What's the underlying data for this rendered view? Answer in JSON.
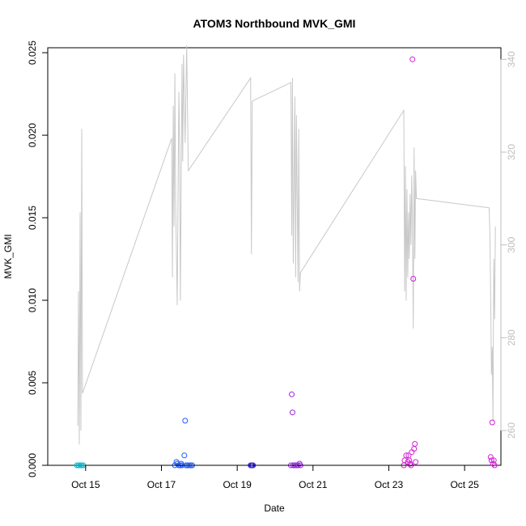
{
  "chart_data": {
    "type": "scatter",
    "title": "ATOM3 Northbound MVK_GMI",
    "xlabel": "Date",
    "ylabel": "MVK_GMI",
    "xlim": [
      "2016-10-14T00:00",
      "2016-10-25T23:00"
    ],
    "ylim": [
      0,
      0.0253
    ],
    "x_ticks": [
      {
        "date": "2016-10-15T00:00",
        "label": "Oct 15"
      },
      {
        "date": "2016-10-17T00:00",
        "label": "Oct 17"
      },
      {
        "date": "2016-10-19T00:00",
        "label": "Oct 19"
      },
      {
        "date": "2016-10-21T00:00",
        "label": "Oct 21"
      },
      {
        "date": "2016-10-23T00:00",
        "label": "Oct 23"
      },
      {
        "date": "2016-10-25T00:00",
        "label": "Oct 25"
      }
    ],
    "y_ticks": [
      0.0,
      0.005,
      0.01,
      0.015,
      0.02,
      0.025
    ],
    "y_tick_labels": [
      "0.000",
      "0.005",
      "0.010",
      "0.015",
      "0.020",
      "0.025"
    ],
    "y2lim": [
      252.5,
      342.5
    ],
    "y2_ticks": [
      260,
      280,
      300,
      320,
      340
    ],
    "y2_tick_labels": [
      "260",
      "280",
      "300",
      "320",
      "340"
    ],
    "series": [
      {
        "color": "#00bcd4",
        "marker": "circle-open",
        "points": [
          [
            "2016-10-14T18:30",
            0.0
          ],
          [
            "2016-10-14T19:30",
            0.0
          ],
          [
            "2016-10-14T20:30",
            0.0
          ],
          [
            "2016-10-14T21:30",
            0.0
          ],
          [
            "2016-10-14T22:30",
            0.0
          ]
        ]
      },
      {
        "color": "#1e5bff",
        "marker": "circle-open",
        "points": [
          [
            "2016-10-17T08:30",
            0.0
          ],
          [
            "2016-10-17T09:30",
            0.0002
          ],
          [
            "2016-10-17T10:00",
            0.0001
          ],
          [
            "2016-10-17T11:00",
            0.0
          ],
          [
            "2016-10-17T12:00",
            0.0
          ],
          [
            "2016-10-17T12:30",
            0.0001
          ],
          [
            "2016-10-17T13:00",
            0.0
          ],
          [
            "2016-10-17T14:30",
            0.0006
          ],
          [
            "2016-10-17T15:00",
            0.0027
          ],
          [
            "2016-10-17T15:30",
            0.0
          ],
          [
            "2016-10-17T16:30",
            0.0
          ],
          [
            "2016-10-17T17:30",
            0.0
          ],
          [
            "2016-10-17T18:30",
            0.0
          ],
          [
            "2016-10-17T19:30",
            0.0
          ]
        ]
      },
      {
        "color": "#3a2ae0",
        "marker": "circle-open",
        "points": [
          [
            "2016-10-19T08:30",
            0.0
          ],
          [
            "2016-10-19T09:00",
            0.0
          ],
          [
            "2016-10-19T09:30",
            0.0
          ],
          [
            "2016-10-19T10:00",
            0.0
          ]
        ]
      },
      {
        "color": "#9b20e8",
        "marker": "circle-open",
        "points": [
          [
            "2016-10-20T10:00",
            0.0
          ],
          [
            "2016-10-20T10:30",
            0.0043
          ],
          [
            "2016-10-20T11:00",
            0.0032
          ],
          [
            "2016-10-20T11:30",
            0.0
          ],
          [
            "2016-10-20T12:30",
            0.0
          ],
          [
            "2016-10-20T13:30",
            0.0
          ],
          [
            "2016-10-20T14:30",
            0.0
          ],
          [
            "2016-10-20T15:30",
            0.0001
          ],
          [
            "2016-10-20T16:00",
            0.0
          ]
        ]
      },
      {
        "color": "#d51ed6",
        "marker": "circle-open",
        "points": [
          [
            "2016-10-23T09:30",
            0.0
          ],
          [
            "2016-10-23T10:00",
            0.0003
          ],
          [
            "2016-10-23T11:00",
            0.0006
          ],
          [
            "2016-10-23T12:00",
            0.0002
          ],
          [
            "2016-10-23T12:30",
            0.0006
          ],
          [
            "2016-10-23T13:00",
            0.0003
          ],
          [
            "2016-10-23T13:30",
            0.0001
          ],
          [
            "2016-10-23T14:00",
            0.0
          ],
          [
            "2016-10-23T14:30",
            0.0008
          ],
          [
            "2016-10-23T15:00",
            0.0246
          ],
          [
            "2016-10-23T15:30",
            0.0113
          ],
          [
            "2016-10-23T16:00",
            0.001
          ],
          [
            "2016-10-23T16:30",
            0.0013
          ],
          [
            "2016-10-23T17:00",
            0.0002
          ],
          [
            "2016-10-25T16:30",
            0.0005
          ],
          [
            "2016-10-25T17:00",
            0.0003
          ],
          [
            "2016-10-25T17:30",
            0.0026
          ],
          [
            "2016-10-25T18:00",
            0.0001
          ],
          [
            "2016-10-25T18:30",
            0.0003
          ],
          [
            "2016-10-25T19:00",
            0.0
          ]
        ]
      }
    ],
    "secondary_line": {
      "color": "#c8c8c8",
      "axis": "right",
      "points": [
        [
          "2016-10-14T19:00",
          261
        ],
        [
          "2016-10-14T19:30",
          290
        ],
        [
          "2016-10-14T20:00",
          257
        ],
        [
          "2016-10-14T20:30",
          307
        ],
        [
          "2016-10-14T21:00",
          260
        ],
        [
          "2016-10-14T21:30",
          325
        ],
        [
          "2016-10-14T22:00",
          268
        ],
        [
          "2016-10-17T06:30",
          323
        ],
        [
          "2016-10-17T07:00",
          293
        ],
        [
          "2016-10-17T07:30",
          330
        ],
        [
          "2016-10-17T08:00",
          304
        ],
        [
          "2016-10-17T08:30",
          337
        ],
        [
          "2016-10-17T09:00",
          310
        ],
        [
          "2016-10-17T10:00",
          287
        ],
        [
          "2016-10-17T11:00",
          333
        ],
        [
          "2016-10-17T11:30",
          322
        ],
        [
          "2016-10-17T12:00",
          288
        ],
        [
          "2016-10-17T13:00",
          339
        ],
        [
          "2016-10-17T13:30",
          318
        ],
        [
          "2016-10-17T14:00",
          341
        ],
        [
          "2016-10-17T15:00",
          322
        ],
        [
          "2016-10-17T16:00",
          343
        ],
        [
          "2016-10-17T17:00",
          316
        ],
        [
          "2016-10-19T08:30",
          336
        ],
        [
          "2016-10-19T09:00",
          298
        ],
        [
          "2016-10-19T09:30",
          331
        ],
        [
          "2016-10-20T10:00",
          335
        ],
        [
          "2016-10-20T10:30",
          302
        ],
        [
          "2016-10-20T11:00",
          336
        ],
        [
          "2016-10-20T11:30",
          296
        ],
        [
          "2016-10-20T12:30",
          332
        ],
        [
          "2016-10-20T13:00",
          293
        ],
        [
          "2016-10-20T13:30",
          328
        ],
        [
          "2016-10-20T14:30",
          292
        ],
        [
          "2016-10-20T15:00",
          325
        ],
        [
          "2016-10-20T15:30",
          290
        ],
        [
          "2016-10-20T16:00",
          294
        ],
        [
          "2016-10-23T09:30",
          329
        ],
        [
          "2016-10-23T10:00",
          290
        ],
        [
          "2016-10-23T10:30",
          317
        ],
        [
          "2016-10-23T11:00",
          288
        ],
        [
          "2016-10-23T11:30",
          312
        ],
        [
          "2016-10-23T12:00",
          293
        ],
        [
          "2016-10-23T12:30",
          307
        ],
        [
          "2016-10-23T13:00",
          297
        ],
        [
          "2016-10-23T13:30",
          311
        ],
        [
          "2016-10-23T14:00",
          300
        ],
        [
          "2016-10-23T14:30",
          315
        ],
        [
          "2016-10-23T15:00",
          305
        ],
        [
          "2016-10-23T15:30",
          282
        ],
        [
          "2016-10-23T16:00",
          321
        ],
        [
          "2016-10-23T16:30",
          297
        ],
        [
          "2016-10-23T17:00",
          316
        ],
        [
          "2016-10-23T17:30",
          310
        ],
        [
          "2016-10-25T15:30",
          308
        ],
        [
          "2016-10-25T16:00",
          303
        ],
        [
          "2016-10-25T16:30",
          290
        ],
        [
          "2016-10-25T17:00",
          272
        ],
        [
          "2016-10-25T17:30",
          278
        ],
        [
          "2016-10-25T18:00",
          262
        ],
        [
          "2016-10-25T18:30",
          297
        ],
        [
          "2016-10-25T19:00",
          284
        ],
        [
          "2016-10-25T19:30",
          304
        ]
      ]
    },
    "grid": false,
    "legend": false
  }
}
